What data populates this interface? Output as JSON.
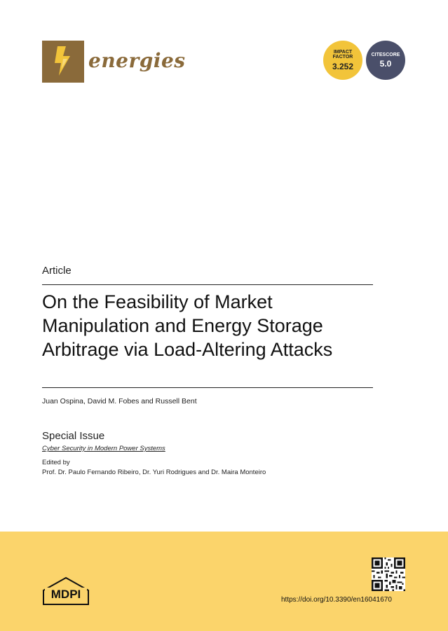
{
  "header": {
    "journal_name": "energies",
    "badges": [
      {
        "label_line1": "IMPACT",
        "label_line2": "FACTOR",
        "value": "3.252",
        "color": "#f2c43a"
      },
      {
        "label_line1": "CITESCORE",
        "label_line2": "",
        "value": "5.0",
        "color": "#4a4f6a"
      }
    ]
  },
  "article": {
    "type": "Article",
    "title_line1": "On the Feasibility of Market",
    "title_line2": "Manipulation and Energy Storage",
    "title_line3": "Arbitrage via Load-Altering Attacks",
    "authors": "Juan Ospina, David M. Fobes and Russell Bent"
  },
  "special_issue": {
    "heading": "Special Issue",
    "name": "Cyber Security in Modern Power Systems",
    "edited_by_label": "Edited by",
    "editors": "Prof. Dr. Paulo Fernando Ribeiro, Dr. Yuri Rodrigues and Dr. Maira Monteiro"
  },
  "footer": {
    "publisher": "MDPI",
    "doi": "https://doi.org/10.3390/en16041670",
    "background_color": "#fbd46b"
  }
}
